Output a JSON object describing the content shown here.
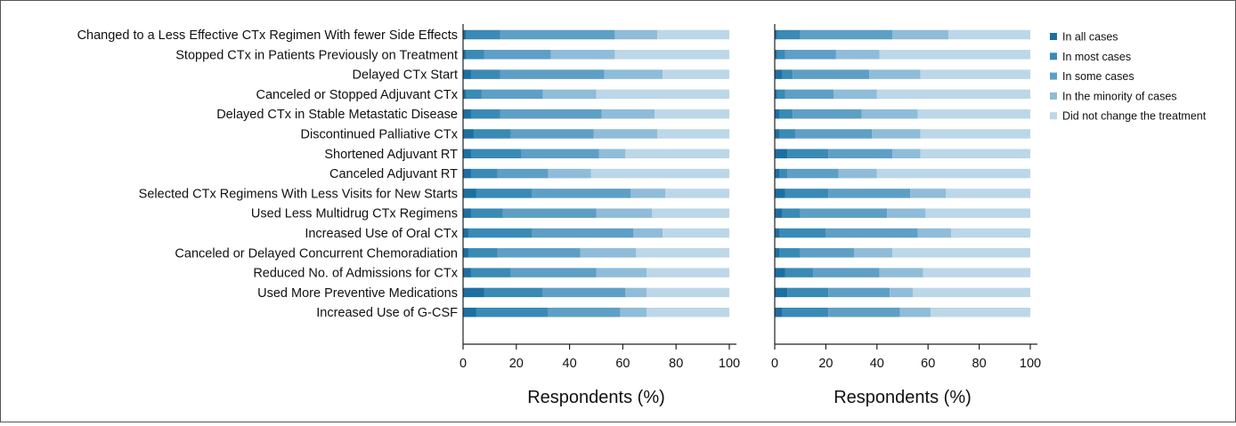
{
  "chart_data": [
    {
      "type": "bar",
      "stacked": true,
      "orientation": "horizontal",
      "categories": [
        "Changed to a Less Effective CTx Regimen With fewer Side Effects",
        "Stopped CTx in Patients Previously on Treatment",
        "Delayed CTx Start",
        "Canceled or Stopped Adjuvant CTx",
        "Delayed CTx in Stable Metastatic Disease",
        "Discontinued Palliative CTx",
        "Shortened Adjuvant RT",
        "Canceled Adjuvant RT",
        "Selected CTx Regimens With Less Visits for New Starts",
        "Used Less Multidrug CTx Regimens",
        "Increased Use of Oral CTx",
        "Canceled or Delayed Concurrent Chemoradiation",
        "Reduced No. of Admissions for CTx",
        "Used More Preventive Medications",
        "Increased Use of G-CSF"
      ],
      "series": [
        {
          "name": "In all cases",
          "values": [
            1,
            1,
            3,
            1,
            3,
            4,
            3,
            3,
            5,
            3,
            2,
            2,
            3,
            8,
            5
          ]
        },
        {
          "name": "In most cases",
          "values": [
            13,
            7,
            11,
            6,
            11,
            14,
            19,
            10,
            21,
            12,
            24,
            11,
            15,
            22,
            27
          ]
        },
        {
          "name": "In some cases",
          "values": [
            43,
            25,
            39,
            23,
            38,
            31,
            29,
            19,
            37,
            35,
            38,
            31,
            32,
            31,
            27
          ]
        },
        {
          "name": "In the minority of cases",
          "values": [
            16,
            24,
            22,
            20,
            20,
            24,
            10,
            16,
            13,
            21,
            11,
            21,
            19,
            8,
            10
          ]
        },
        {
          "name": "Did not change the treatment",
          "values": [
            27,
            43,
            25,
            50,
            28,
            27,
            39,
            52,
            24,
            29,
            25,
            35,
            31,
            31,
            31
          ]
        }
      ],
      "xlabel": "Respondents (%)",
      "ylabel": "",
      "xlim": [
        0,
        100
      ],
      "xticks": [
        0,
        20,
        40,
        60,
        80,
        100
      ]
    },
    {
      "type": "bar",
      "stacked": true,
      "orientation": "horizontal",
      "categories": [
        "Changed to a Less Effective CTx Regimen With fewer Side Effects",
        "Stopped CTx in Patients Previously on Treatment",
        "Delayed CTx Start",
        "Canceled or Stopped Adjuvant CTx",
        "Delayed CTx in Stable Metastatic Disease",
        "Discontinued Palliative CTx",
        "Shortened Adjuvant RT",
        "Canceled Adjuvant RT",
        "Selected CTx Regimens With Less Visits for New Starts",
        "Used Less Multidrug CTx Regimens",
        "Increased Use of Oral CTx",
        "Canceled or Delayed Concurrent Chemoradiation",
        "Reduced No. of Admissions for CTx",
        "Used More Preventive Medications",
        "Increased Use of G-CSF"
      ],
      "series": [
        {
          "name": "In all cases",
          "values": [
            1,
            1,
            3,
            1,
            2,
            2,
            5,
            2,
            4,
            3,
            2,
            2,
            4,
            5,
            3
          ]
        },
        {
          "name": "In most cases",
          "values": [
            9,
            3,
            4,
            3,
            5,
            6,
            16,
            3,
            17,
            7,
            18,
            8,
            11,
            16,
            18
          ]
        },
        {
          "name": "In some cases",
          "values": [
            36,
            20,
            30,
            19,
            27,
            30,
            25,
            20,
            32,
            34,
            36,
            21,
            26,
            24,
            28
          ]
        },
        {
          "name": "In the minority of cases",
          "values": [
            22,
            17,
            20,
            17,
            22,
            19,
            11,
            15,
            14,
            15,
            13,
            15,
            17,
            9,
            12
          ]
        },
        {
          "name": "Did not change the treatment",
          "values": [
            32,
            59,
            43,
            60,
            44,
            43,
            43,
            60,
            33,
            41,
            31,
            54,
            42,
            46,
            39
          ]
        }
      ],
      "xlabel": "Respondents (%)",
      "ylabel": "",
      "xlim": [
        0,
        100
      ],
      "xticks": [
        0,
        20,
        40,
        60,
        80,
        100
      ]
    }
  ],
  "legend": {
    "placement": "right",
    "entries": [
      "In all cases",
      "In most cases",
      "In some cases",
      "In the minority of cases",
      "Did not change the treatment"
    ]
  },
  "colors": [
    "#1d6fa2",
    "#3a8ab6",
    "#5e9fc6",
    "#8fbcd9",
    "#bcd7e8"
  ]
}
